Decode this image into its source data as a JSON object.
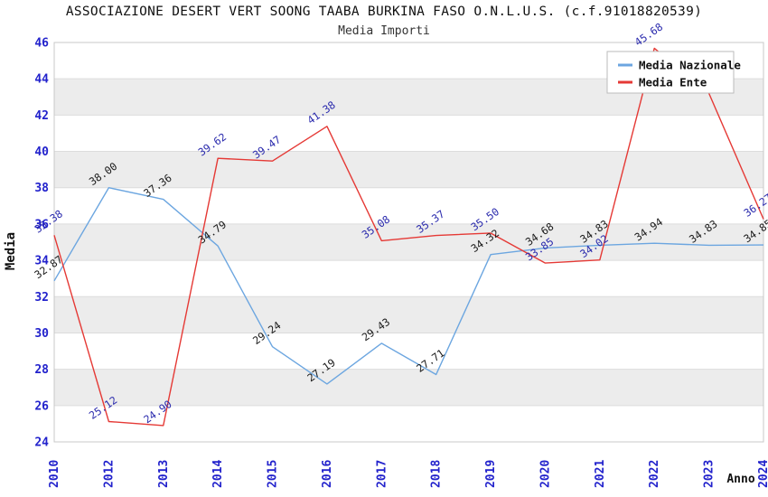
{
  "chart_data": {
    "type": "line",
    "title": "ASSOCIAZIONE DESERT VERT SOONG TAABA BURKINA FASO O.N.L.U.S. (c.f.91018820539)",
    "subtitle": "Media Importi",
    "xlabel": "Anno",
    "ylabel": "Media",
    "categories": [
      "2010",
      "2012",
      "2013",
      "2014",
      "2015",
      "2016",
      "2017",
      "2018",
      "2019",
      "2020",
      "2021",
      "2022",
      "2023",
      "2024"
    ],
    "series": [
      {
        "name": "Media Nazionale",
        "color": "#6ca6e0",
        "label_color": "#1a1a1a",
        "values": [
          32.87,
          38.0,
          37.36,
          34.79,
          29.24,
          27.19,
          29.43,
          27.71,
          34.32,
          34.68,
          34.83,
          34.94,
          34.83,
          34.85
        ]
      },
      {
        "name": "Media Ente",
        "color": "#e53935",
        "label_color": "#2a2aad",
        "values": [
          35.38,
          25.12,
          24.9,
          39.62,
          39.47,
          41.38,
          35.08,
          35.37,
          35.5,
          33.85,
          34.02,
          45.68,
          43.2,
          36.27
        ],
        "label_hidden_behind_legend_index": 12
      }
    ],
    "ylim": [
      24,
      46
    ],
    "y_tick_step": 2,
    "shaded_bands": [
      [
        26,
        28
      ],
      [
        30,
        32
      ],
      [
        34,
        36
      ],
      [
        38,
        40
      ],
      [
        42,
        44
      ]
    ],
    "grid": true,
    "legend_position": "top-right",
    "colors": {
      "tick": "#2222cc",
      "grid": "#dcdcdc",
      "frame": "#c8c8c8",
      "band": "#ececec",
      "title": "#111111",
      "subtitle": "#333333",
      "legend_border": "#bbbbbb",
      "legend_text": "#111111"
    }
  }
}
